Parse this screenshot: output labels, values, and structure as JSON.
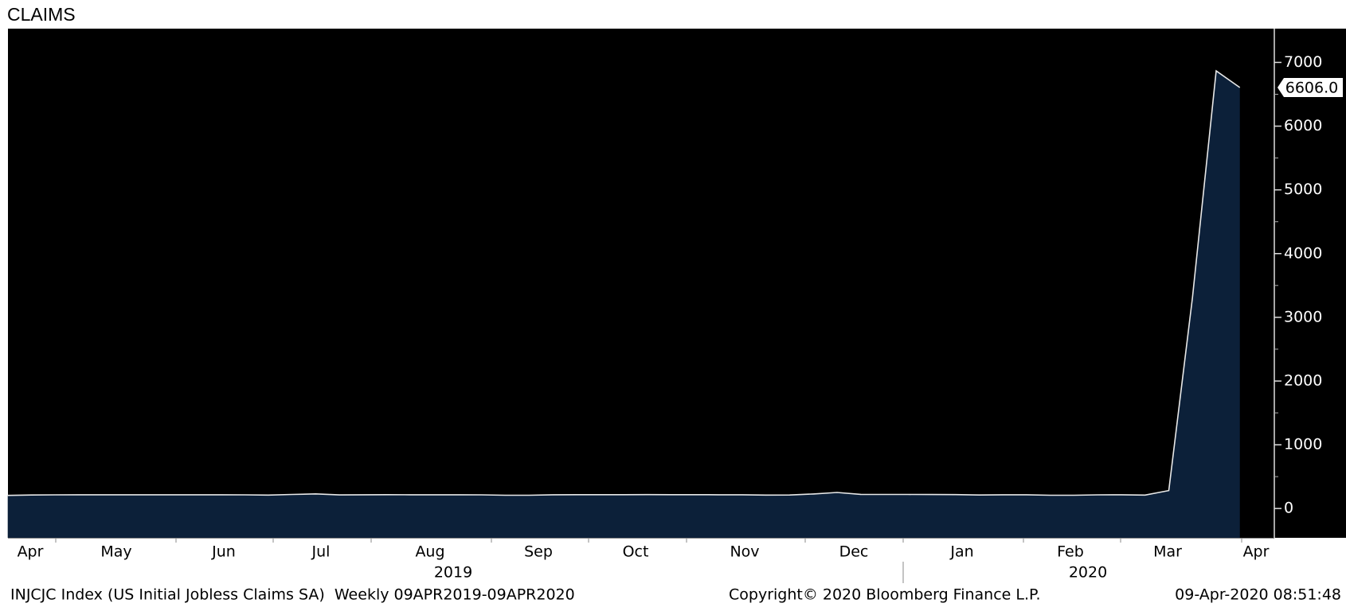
{
  "title": "CLAIMS",
  "chart_data": {
    "type": "area",
    "values": [
      205,
      212,
      214,
      215,
      216,
      215,
      216,
      215,
      215,
      216,
      214,
      210,
      221,
      229,
      213,
      216,
      217,
      216,
      216,
      215,
      214,
      208,
      208,
      215,
      217,
      217,
      217,
      218,
      217,
      217,
      216,
      216,
      210,
      212,
      228,
      252,
      222,
      221,
      220,
      219,
      218,
      212,
      216,
      215,
      208,
      208,
      214,
      215,
      210,
      282,
      3307,
      6867,
      6606
    ],
    "value_labels": [
      null,
      null,
      null,
      null,
      null,
      null,
      null,
      null,
      null,
      null,
      null,
      null,
      null,
      null,
      null,
      null,
      null,
      null,
      null,
      null,
      null,
      null,
      null,
      null,
      null,
      null,
      null,
      null,
      null,
      null,
      null,
      null,
      null,
      null,
      null,
      null,
      null,
      null,
      null,
      null,
      null,
      null,
      null,
      null,
      null,
      null,
      null,
      null,
      null,
      null,
      null,
      null,
      "6606.0"
    ],
    "color": "#0c2039",
    "line_color": "#e8e8e8",
    "ylim": [
      -460,
      7530
    ],
    "yticks": [
      0,
      1000,
      2000,
      3000,
      4000,
      5000,
      6000,
      7000
    ],
    "yminorticks": [
      500,
      1500,
      2500,
      3500,
      4500,
      5500,
      6500
    ],
    "month_labels": [
      "Apr",
      "May",
      "Jun",
      "Jul",
      "Aug",
      "Sep",
      "Oct",
      "Nov",
      "Dec",
      "Jan",
      "Feb",
      "Mar",
      "Apr"
    ],
    "year_labels": [
      "2019",
      "2020"
    ]
  },
  "footer": {
    "series": "INJCJC Index (US Initial Jobless Claims SA)  Weekly 09APR2019-09APR2020",
    "copyright": "Copyright© 2020 Bloomberg Finance L.P.",
    "timestamp": "09-Apr-2020 08:51:48"
  }
}
